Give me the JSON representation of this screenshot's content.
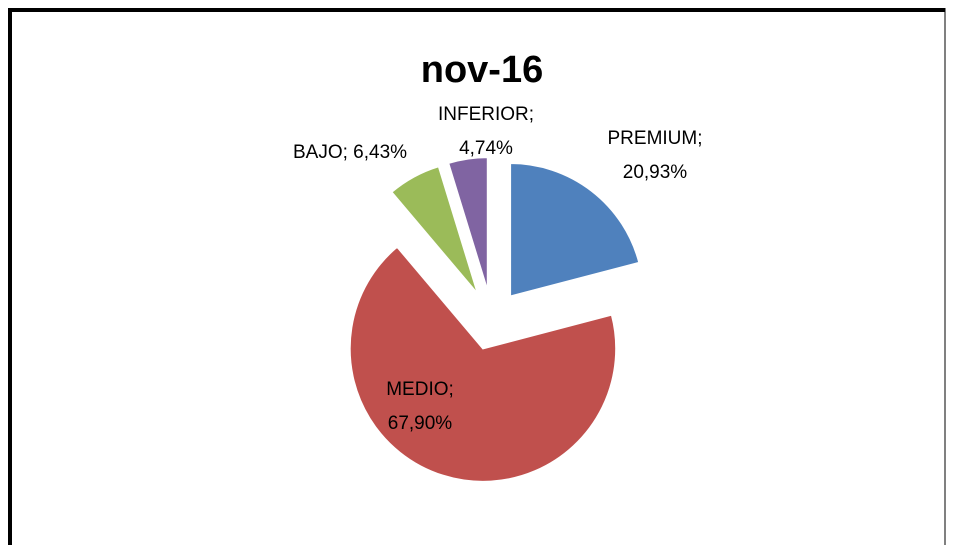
{
  "chart_data": {
    "type": "pie",
    "title": "nov-16",
    "values": [
      20.93,
      67.9,
      6.43,
      4.74
    ],
    "value_labels": [
      [
        "PREMIUM;",
        "20,93%"
      ],
      [
        "MEDIO;",
        "67,90%"
      ],
      [
        "BAJO; 6,43%"
      ],
      [
        "INFERIOR;",
        "4,74%"
      ]
    ],
    "colors": [
      "#4f81bd",
      "#c0504d",
      "#9bbb59",
      "#8064a2"
    ]
  }
}
